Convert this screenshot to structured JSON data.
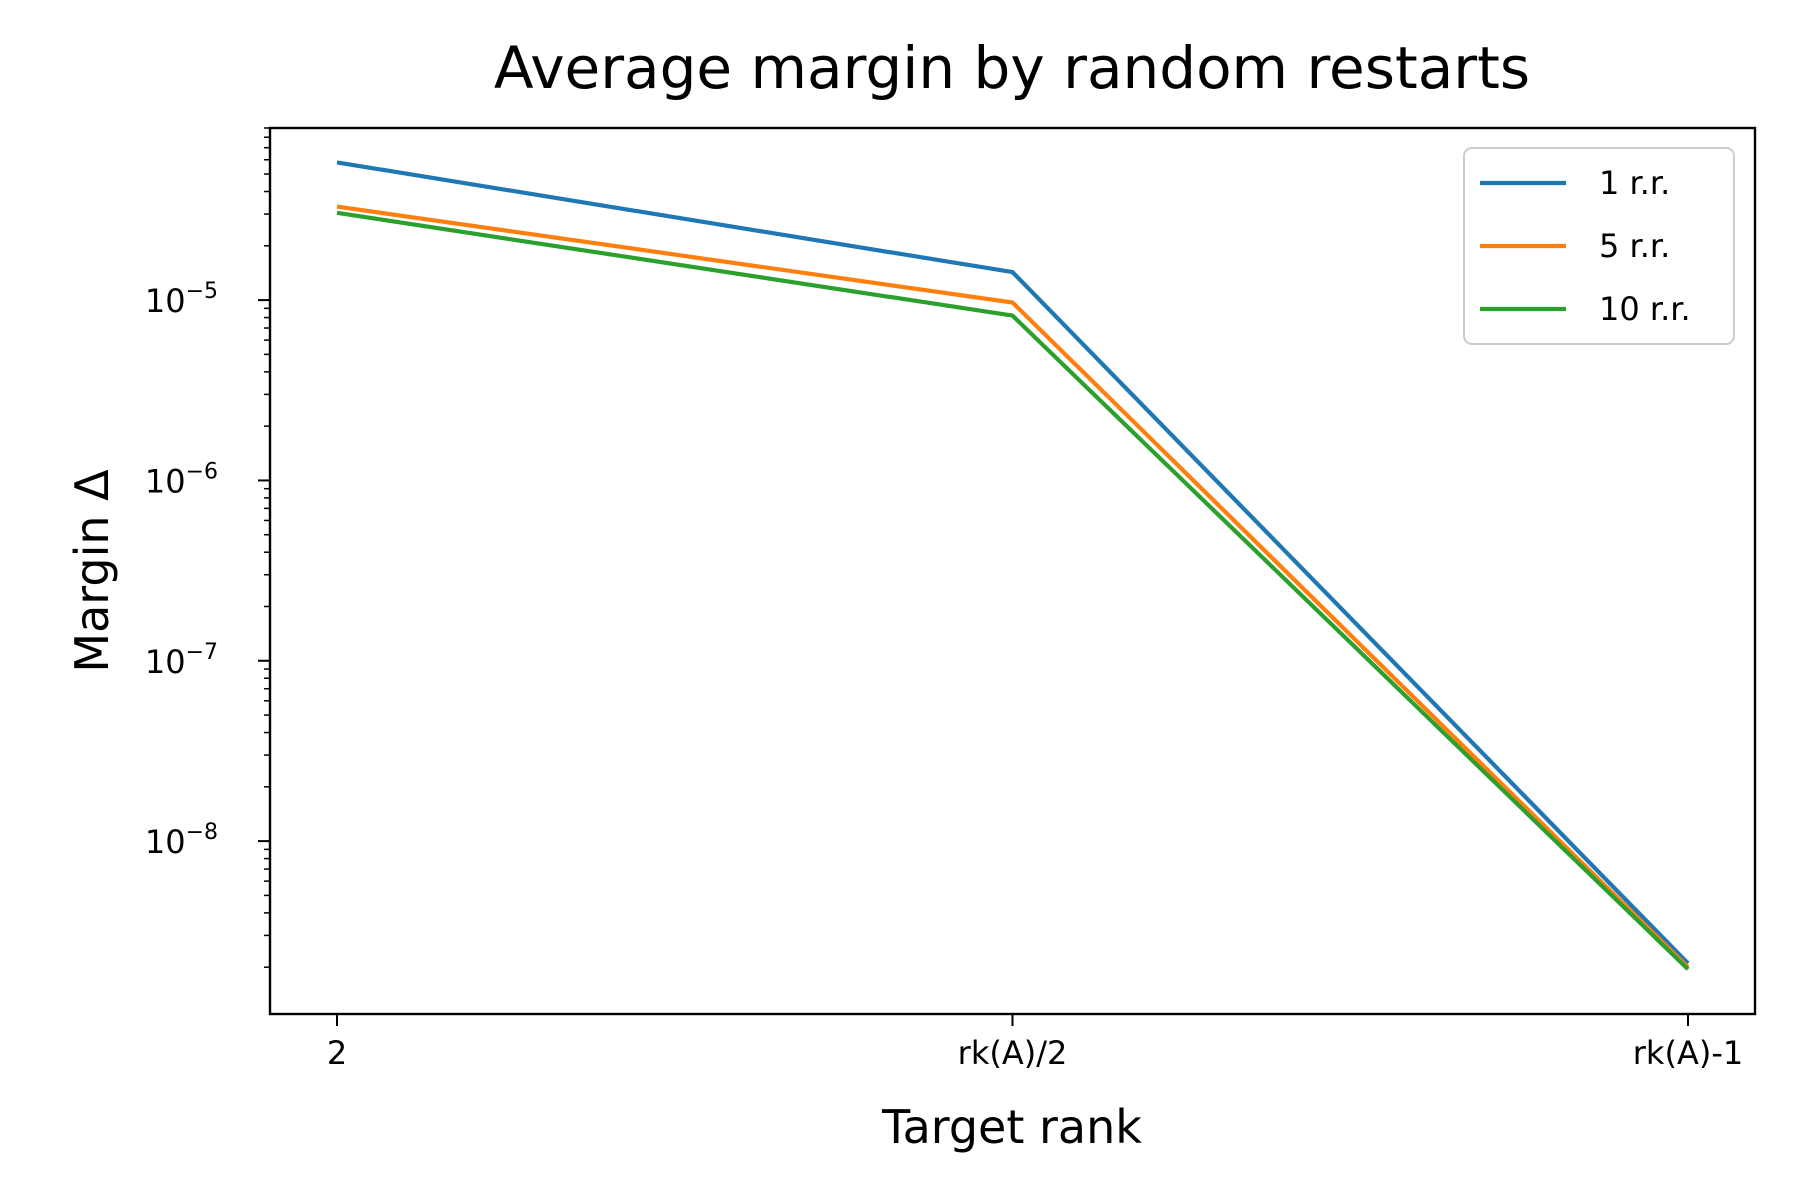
{
  "chart_data": {
    "type": "line",
    "title": "Average margin by random restarts",
    "xlabel": "Target rank",
    "ylabel": "Margin Δ",
    "y_scale": "log",
    "categories": [
      "2",
      "rk(A)/2",
      "rk(A)-1"
    ],
    "ylim": [
      1.1e-09,
      9e-05
    ],
    "y_ticks": [
      {
        "value": 1e-08,
        "base": "10",
        "exp": "−8"
      },
      {
        "value": 1e-07,
        "base": "10",
        "exp": "−7"
      },
      {
        "value": 1e-06,
        "base": "10",
        "exp": "−6"
      },
      {
        "value": 1e-05,
        "base": "10",
        "exp": "−5"
      }
    ],
    "series": [
      {
        "name": "1 r.r.",
        "color": "#1f77b4",
        "values": [
          5.8e-05,
          1.43e-05,
          2.1e-09
        ]
      },
      {
        "name": "5 r.r.",
        "color": "#ff7f0e",
        "values": [
          3.3e-05,
          9.7e-06,
          2e-09
        ]
      },
      {
        "name": "10 r.r.",
        "color": "#2ca02c",
        "values": [
          3.05e-05,
          8.2e-06,
          1.95e-09
        ]
      }
    ],
    "legend_position": "top-right",
    "grid": false
  }
}
